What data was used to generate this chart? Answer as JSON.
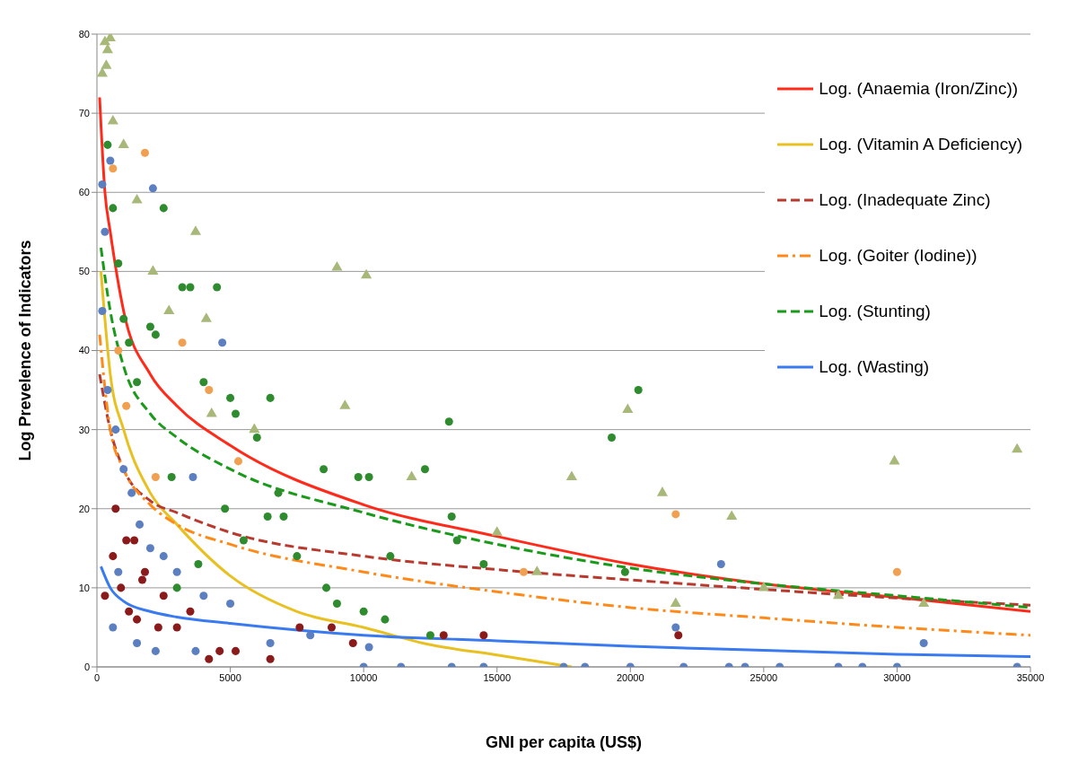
{
  "chart_data": {
    "type": "scatter",
    "xlabel": "GNI per capita (US$)",
    "ylabel": "Log Prevelence of Indicators",
    "xlim": [
      0,
      35000
    ],
    "ylim": [
      0,
      80
    ],
    "xticks": [
      0,
      5000,
      10000,
      15000,
      20000,
      25000,
      30000,
      35000
    ],
    "yticks": [
      0,
      10,
      20,
      30,
      40,
      50,
      60,
      70,
      80
    ],
    "grid": "y",
    "legend": "top right",
    "series": [
      {
        "marker": "circle",
        "color": "#2e8b2e",
        "x": [
          2500,
          3200,
          3500,
          4500,
          2000,
          2200,
          4000,
          5000,
          5200,
          6500,
          6000,
          6800,
          7000,
          6400,
          8500,
          9800,
          10200,
          12300,
          13200,
          13300,
          13500,
          8600,
          9000,
          10000,
          10800,
          12500,
          19300,
          20300,
          5500,
          4800,
          3800,
          3000,
          7500,
          1500,
          1000,
          800,
          1200,
          600,
          400,
          2800,
          11000,
          14500,
          19800
        ],
        "values": [
          58,
          48,
          48,
          48,
          43,
          42,
          36,
          34,
          32,
          34,
          29,
          22,
          19,
          19,
          25,
          24,
          24,
          25,
          31,
          19,
          16,
          10,
          8,
          7,
          6,
          4,
          29,
          35,
          16,
          20,
          13,
          10,
          14,
          36,
          44,
          51,
          41,
          58,
          66,
          24,
          14,
          13,
          12
        ]
      },
      {
        "marker": "triangle",
        "color": "#a8b878",
        "x": [
          300,
          500,
          400,
          200,
          350,
          600,
          1000,
          1500,
          2100,
          3700,
          4100,
          2700,
          9000,
          10100,
          9300,
          19900,
          21200,
          17800,
          29900,
          34500,
          23800,
          21700,
          25000,
          27800,
          31000,
          16500,
          15000,
          11800,
          5900,
          4300
        ],
        "values": [
          79,
          79.5,
          78,
          75,
          76,
          69,
          66,
          59,
          50,
          55,
          44,
          45,
          50.5,
          49.5,
          33,
          32.5,
          22,
          24,
          26,
          27.5,
          19,
          8,
          10,
          9,
          8,
          12,
          17,
          24,
          30,
          32
        ]
      },
      {
        "marker": "circle",
        "color": "#5b7fc0",
        "x": [
          200,
          300,
          500,
          2100,
          4700,
          3600,
          200,
          400,
          700,
          1000,
          1300,
          1600,
          2000,
          2500,
          3000,
          4000,
          5000,
          800,
          600,
          1500,
          2200,
          3700,
          10000,
          11400,
          13300,
          14500,
          17500,
          18300,
          20000,
          22000,
          23700,
          24300,
          25600,
          27800,
          28700,
          30000,
          34500,
          23400,
          31000,
          21700,
          10200,
          8000,
          6500
        ],
        "values": [
          61,
          55,
          64,
          60.5,
          41,
          24,
          45,
          35,
          30,
          25,
          22,
          18,
          15,
          14,
          12,
          9,
          8,
          12,
          5,
          3,
          2,
          2,
          0,
          0,
          0,
          0,
          0,
          0,
          0,
          0,
          0,
          0,
          0,
          0,
          0,
          0,
          0,
          13,
          3,
          5,
          2.5,
          4,
          3
        ]
      },
      {
        "marker": "circle",
        "color": "#8b1a1a",
        "x": [
          300,
          600,
          900,
          1200,
          1500,
          1800,
          2300,
          3000,
          4200,
          4600,
          5200,
          6500,
          7600,
          8800,
          9600,
          13000,
          14500,
          21800,
          700,
          1100,
          1400,
          1700,
          2500,
          3500
        ],
        "values": [
          9,
          14,
          10,
          7,
          6,
          12,
          5,
          5,
          1,
          2,
          2,
          1,
          5,
          5,
          3,
          4,
          4,
          4,
          20,
          16,
          16,
          11,
          9,
          7
        ]
      },
      {
        "marker": "circle",
        "color": "#f0a050",
        "x": [
          1800,
          600,
          3200,
          2200,
          4200,
          5300,
          21700,
          30000,
          16000,
          800,
          1100
        ],
        "values": [
          65,
          63,
          41,
          24,
          35,
          26,
          19.3,
          12,
          12,
          40,
          33
        ]
      },
      {
        "type": "line",
        "name": "Log. (Anaemia (Iron/Zinc))",
        "color": "#ff2a1a",
        "line_style": "solid",
        "marker": "none",
        "x": [
          100,
          300,
          500,
          1000,
          2000,
          3000,
          5000,
          10000,
          15000,
          20000,
          25000,
          30000,
          35000
        ],
        "values": [
          72,
          60,
          55,
          45,
          37,
          33,
          28,
          20.5,
          16.5,
          13,
          10.5,
          8.8,
          7
        ]
      },
      {
        "type": "line",
        "name": "Log. (Vitamin A Deficiency)",
        "color": "#e8c020",
        "line_style": "solid",
        "marker": "none",
        "x": [
          150,
          500,
          1000,
          2000,
          3000,
          5000,
          7500,
          10000,
          12500,
          15000,
          17800
        ],
        "values": [
          50,
          37,
          30,
          22,
          18,
          11.5,
          7,
          5,
          2.8,
          1.5,
          0
        ]
      },
      {
        "type": "line",
        "name": "Log. (Inadequate Zinc)",
        "color": "#b83a2e",
        "line_style": "dashed",
        "marker": "none",
        "x": [
          100,
          500,
          1000,
          2000,
          3000,
          5000,
          10000,
          15000,
          20000,
          25000,
          30000,
          35000
        ],
        "values": [
          37,
          30,
          25,
          21,
          19.5,
          17,
          14,
          12.3,
          11,
          9.8,
          8.7,
          7.8
        ]
      },
      {
        "type": "line",
        "name": "Log. (Goiter (Iodine))",
        "color": "#ff8a1a",
        "line_style": "dashdot",
        "marker": "none",
        "x": [
          100,
          500,
          1000,
          2000,
          3000,
          5000,
          10000,
          15000,
          20000,
          25000,
          30000,
          35000
        ],
        "values": [
          42,
          30,
          25,
          20.5,
          18,
          15.5,
          12,
          9.5,
          7.5,
          6.2,
          5,
          4
        ]
      },
      {
        "type": "line",
        "name": "Log. (Stunting)",
        "color": "#1a9a1a",
        "line_style": "dashed",
        "marker": "none",
        "x": [
          150,
          500,
          1000,
          2000,
          3000,
          5000,
          10000,
          15000,
          20000,
          25000,
          30000,
          35000
        ],
        "values": [
          53,
          45,
          38,
          32,
          29,
          25,
          19.5,
          15.5,
          12.5,
          10.5,
          9,
          7.5
        ]
      },
      {
        "type": "line",
        "name": "Log. (Wasting)",
        "color": "#3a7af0",
        "line_style": "solid",
        "marker": "none",
        "x": [
          150,
          500,
          1000,
          2000,
          3000,
          5000,
          10000,
          15000,
          20000,
          25000,
          30000,
          35000
        ],
        "values": [
          12.7,
          10,
          8.3,
          7,
          6.3,
          5.5,
          4,
          3.3,
          2.6,
          2.1,
          1.6,
          1.3
        ]
      }
    ]
  }
}
